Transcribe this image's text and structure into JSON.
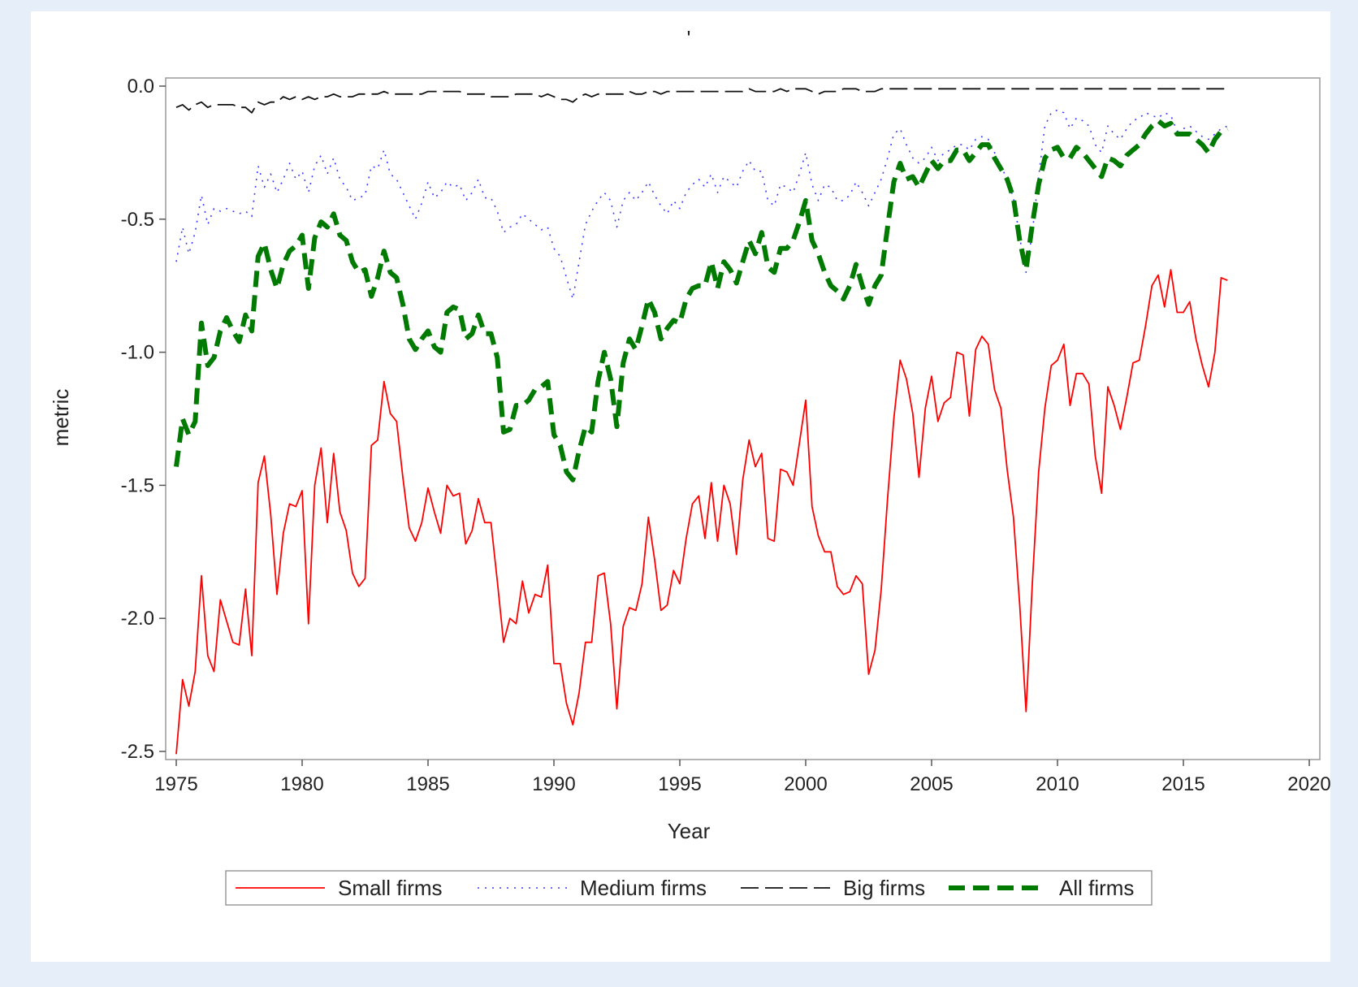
{
  "chart_data": {
    "type": "line",
    "title": "'",
    "xlabel": "Year",
    "ylabel": "metric",
    "xlim": [
      1975,
      2020
    ],
    "ylim": [
      -2.5,
      0.0
    ],
    "x_ticks": [
      "1975",
      "1980",
      "1985",
      "1990",
      "1995",
      "2000",
      "2005",
      "2010",
      "2015",
      "2020"
    ],
    "y_ticks": [
      "0.0",
      "-0.5",
      "-1.0",
      "-1.5",
      "-2.0",
      "-2.5"
    ],
    "grid": false,
    "legend_position": "bottom",
    "x": [
      1975.0,
      1975.25,
      1975.5,
      1975.75,
      1976.0,
      1976.25,
      1976.5,
      1976.75,
      1977.0,
      1977.25,
      1977.5,
      1977.75,
      1978.0,
      1978.25,
      1978.5,
      1978.75,
      1979.0,
      1979.25,
      1979.5,
      1979.75,
      1980.0,
      1980.25,
      1980.5,
      1980.75,
      1981.0,
      1981.25,
      1981.5,
      1981.75,
      1982.0,
      1982.25,
      1982.5,
      1982.75,
      1983.0,
      1983.25,
      1983.5,
      1983.75,
      1984.0,
      1984.25,
      1984.5,
      1984.75,
      1985.0,
      1985.25,
      1985.5,
      1985.75,
      1986.0,
      1986.25,
      1986.5,
      1986.75,
      1987.0,
      1987.25,
      1987.5,
      1987.75,
      1988.0,
      1988.25,
      1988.5,
      1988.75,
      1989.0,
      1989.25,
      1989.5,
      1989.75,
      1990.0,
      1990.25,
      1990.5,
      1990.75,
      1991.0,
      1991.25,
      1991.5,
      1991.75,
      1992.0,
      1992.25,
      1992.5,
      1992.75,
      1993.0,
      1993.25,
      1993.5,
      1993.75,
      1994.0,
      1994.25,
      1994.5,
      1994.75,
      1995.0,
      1995.25,
      1995.5,
      1995.75,
      1996.0,
      1996.25,
      1996.5,
      1996.75,
      1997.0,
      1997.25,
      1997.5,
      1997.75,
      1998.0,
      1998.25,
      1998.5,
      1998.75,
      1999.0,
      1999.25,
      1999.5,
      1999.75,
      2000.0,
      2000.25,
      2000.5,
      2000.75,
      2001.0,
      2001.25,
      2001.5,
      2001.75,
      2002.0,
      2002.25,
      2002.5,
      2002.75,
      2003.0,
      2003.25,
      2003.5,
      2003.75,
      2004.0,
      2004.25,
      2004.5,
      2004.75,
      2005.0,
      2005.25,
      2005.5,
      2005.75,
      2006.0,
      2006.25,
      2006.5,
      2006.75,
      2007.0,
      2007.25,
      2007.5,
      2007.75,
      2008.0,
      2008.25,
      2008.5,
      2008.75,
      2009.0,
      2009.25,
      2009.5,
      2009.75,
      2010.0,
      2010.25,
      2010.5,
      2010.75,
      2011.0,
      2011.25,
      2011.5,
      2011.75,
      2012.0,
      2012.25,
      2012.5,
      2012.75,
      2013.0,
      2013.25,
      2013.5,
      2013.75,
      2014.0,
      2014.25,
      2014.5,
      2014.75,
      2015.0,
      2015.25,
      2015.5,
      2015.75,
      2016.0,
      2016.25,
      2016.5,
      2016.75
    ],
    "series": [
      {
        "name": "Small firms",
        "color": "#ff0000",
        "style": "solid",
        "values": [
          -2.51,
          -2.23,
          -2.33,
          -2.2,
          -1.84,
          -2.14,
          -2.2,
          -1.93,
          -2.01,
          -2.09,
          -2.1,
          -1.89,
          -2.14,
          -1.49,
          -1.39,
          -1.61,
          -1.91,
          -1.68,
          -1.57,
          -1.58,
          -1.52,
          -2.02,
          -1.5,
          -1.36,
          -1.64,
          -1.38,
          -1.6,
          -1.67,
          -1.83,
          -1.88,
          -1.85,
          -1.35,
          -1.33,
          -1.11,
          -1.23,
          -1.26,
          -1.47,
          -1.66,
          -1.71,
          -1.64,
          -1.51,
          -1.6,
          -1.68,
          -1.5,
          -1.54,
          -1.53,
          -1.72,
          -1.67,
          -1.55,
          -1.64,
          -1.64,
          -1.86,
          -2.09,
          -2.0,
          -2.02,
          -1.86,
          -1.98,
          -1.91,
          -1.92,
          -1.8,
          -2.17,
          -2.17,
          -2.32,
          -2.4,
          -2.28,
          -2.09,
          -2.09,
          -1.84,
          -1.83,
          -2.02,
          -2.34,
          -2.03,
          -1.96,
          -1.97,
          -1.87,
          -1.62,
          -1.78,
          -1.97,
          -1.95,
          -1.82,
          -1.87,
          -1.7,
          -1.57,
          -1.54,
          -1.7,
          -1.49,
          -1.71,
          -1.5,
          -1.57,
          -1.76,
          -1.48,
          -1.33,
          -1.43,
          -1.38,
          -1.7,
          -1.71,
          -1.44,
          -1.45,
          -1.5,
          -1.34,
          -1.18,
          -1.58,
          -1.69,
          -1.75,
          -1.75,
          -1.88,
          -1.91,
          -1.9,
          -1.84,
          -1.87,
          -2.21,
          -2.12,
          -1.89,
          -1.55,
          -1.25,
          -1.03,
          -1.1,
          -1.23,
          -1.47,
          -1.21,
          -1.09,
          -1.26,
          -1.19,
          -1.17,
          -1.0,
          -1.01,
          -1.24,
          -0.99,
          -0.94,
          -0.97,
          -1.14,
          -1.21,
          -1.44,
          -1.62,
          -1.95,
          -2.35,
          -1.87,
          -1.45,
          -1.21,
          -1.05,
          -1.03,
          -0.97,
          -1.2,
          -1.08,
          -1.08,
          -1.12,
          -1.39,
          -1.53,
          -1.13,
          -1.2,
          -1.29,
          -1.17,
          -1.04,
          -1.03,
          -0.9,
          -0.75,
          -0.71,
          -0.83,
          -0.69,
          -0.85,
          -0.85,
          -0.81,
          -0.95,
          -1.05,
          -1.13,
          -1.0,
          -0.72,
          -0.73
        ]
      },
      {
        "name": "Medium firms",
        "color": "#3b3bff",
        "style": "dotted",
        "values": [
          -0.66,
          -0.53,
          -0.63,
          -0.55,
          -0.41,
          -0.52,
          -0.46,
          -0.47,
          -0.46,
          -0.47,
          -0.48,
          -0.47,
          -0.49,
          -0.3,
          -0.38,
          -0.33,
          -0.4,
          -0.35,
          -0.29,
          -0.35,
          -0.32,
          -0.4,
          -0.3,
          -0.26,
          -0.33,
          -0.27,
          -0.35,
          -0.38,
          -0.43,
          -0.42,
          -0.41,
          -0.3,
          -0.31,
          -0.24,
          -0.33,
          -0.35,
          -0.4,
          -0.45,
          -0.5,
          -0.44,
          -0.36,
          -0.42,
          -0.4,
          -0.36,
          -0.38,
          -0.37,
          -0.43,
          -0.4,
          -0.35,
          -0.42,
          -0.42,
          -0.47,
          -0.55,
          -0.53,
          -0.52,
          -0.48,
          -0.5,
          -0.52,
          -0.54,
          -0.53,
          -0.61,
          -0.64,
          -0.72,
          -0.8,
          -0.66,
          -0.52,
          -0.47,
          -0.43,
          -0.4,
          -0.43,
          -0.53,
          -0.43,
          -0.4,
          -0.43,
          -0.4,
          -0.36,
          -0.41,
          -0.45,
          -0.48,
          -0.43,
          -0.46,
          -0.4,
          -0.37,
          -0.35,
          -0.38,
          -0.33,
          -0.4,
          -0.34,
          -0.36,
          -0.38,
          -0.32,
          -0.28,
          -0.32,
          -0.32,
          -0.43,
          -0.45,
          -0.37,
          -0.38,
          -0.4,
          -0.33,
          -0.25,
          -0.37,
          -0.43,
          -0.37,
          -0.38,
          -0.43,
          -0.43,
          -0.41,
          -0.36,
          -0.4,
          -0.45,
          -0.4,
          -0.35,
          -0.27,
          -0.18,
          -0.16,
          -0.22,
          -0.27,
          -0.29,
          -0.27,
          -0.23,
          -0.28,
          -0.25,
          -0.24,
          -0.22,
          -0.22,
          -0.24,
          -0.2,
          -0.19,
          -0.2,
          -0.25,
          -0.3,
          -0.35,
          -0.42,
          -0.57,
          -0.7,
          -0.55,
          -0.34,
          -0.15,
          -0.1,
          -0.09,
          -0.1,
          -0.16,
          -0.12,
          -0.13,
          -0.15,
          -0.22,
          -0.25,
          -0.15,
          -0.18,
          -0.2,
          -0.16,
          -0.13,
          -0.12,
          -0.1,
          -0.11,
          -0.12,
          -0.1,
          -0.11,
          -0.17,
          -0.16,
          -0.15,
          -0.17,
          -0.19,
          -0.2,
          -0.18,
          -0.16,
          -0.15
        ]
      },
      {
        "name": "Big firms",
        "color": "#111111",
        "style": "long-dash",
        "values": [
          -0.08,
          -0.07,
          -0.09,
          -0.07,
          -0.06,
          -0.08,
          -0.07,
          -0.07,
          -0.07,
          -0.07,
          -0.08,
          -0.08,
          -0.1,
          -0.06,
          -0.07,
          -0.06,
          -0.06,
          -0.04,
          -0.05,
          -0.04,
          -0.05,
          -0.04,
          -0.05,
          -0.04,
          -0.04,
          -0.03,
          -0.04,
          -0.04,
          -0.04,
          -0.03,
          -0.03,
          -0.03,
          -0.03,
          -0.02,
          -0.03,
          -0.03,
          -0.03,
          -0.03,
          -0.03,
          -0.03,
          -0.02,
          -0.02,
          -0.02,
          -0.02,
          -0.02,
          -0.02,
          -0.03,
          -0.03,
          -0.03,
          -0.03,
          -0.04,
          -0.04,
          -0.04,
          -0.04,
          -0.03,
          -0.03,
          -0.03,
          -0.03,
          -0.04,
          -0.03,
          -0.04,
          -0.05,
          -0.05,
          -0.06,
          -0.04,
          -0.03,
          -0.04,
          -0.03,
          -0.03,
          -0.03,
          -0.03,
          -0.03,
          -0.02,
          -0.03,
          -0.03,
          -0.02,
          -0.02,
          -0.03,
          -0.02,
          -0.02,
          -0.02,
          -0.02,
          -0.02,
          -0.02,
          -0.02,
          -0.02,
          -0.02,
          -0.02,
          -0.02,
          -0.02,
          -0.02,
          -0.01,
          -0.02,
          -0.02,
          -0.02,
          -0.02,
          -0.01,
          -0.02,
          -0.01,
          -0.01,
          -0.01,
          -0.02,
          -0.03,
          -0.02,
          -0.02,
          -0.02,
          -0.01,
          -0.01,
          -0.01,
          -0.02,
          -0.02,
          -0.02,
          -0.01,
          -0.01,
          -0.01,
          -0.01,
          -0.01,
          -0.01,
          -0.01,
          -0.01,
          -0.01,
          -0.01,
          -0.01,
          -0.01,
          -0.01,
          -0.01,
          -0.01,
          -0.01,
          -0.01,
          -0.01,
          -0.01,
          -0.01,
          -0.01,
          -0.01,
          -0.01,
          -0.01,
          -0.01,
          -0.01,
          -0.01,
          -0.01,
          -0.01,
          -0.01,
          -0.01,
          -0.01,
          -0.01,
          -0.01,
          -0.01,
          -0.01,
          -0.01,
          -0.01,
          -0.01,
          -0.01,
          -0.01,
          -0.01,
          -0.01,
          -0.01,
          -0.01,
          -0.01,
          -0.01,
          -0.01,
          -0.01,
          -0.01,
          -0.01,
          -0.01,
          -0.01,
          -0.01,
          -0.01,
          -0.01
        ]
      },
      {
        "name": "All firms",
        "color": "#007a00",
        "style": "thick-dash",
        "values": [
          -1.43,
          -1.25,
          -1.31,
          -1.26,
          -0.89,
          -1.05,
          -1.02,
          -0.92,
          -0.87,
          -0.92,
          -0.96,
          -0.86,
          -0.92,
          -0.64,
          -0.59,
          -0.69,
          -0.76,
          -0.67,
          -0.62,
          -0.6,
          -0.56,
          -0.76,
          -0.57,
          -0.51,
          -0.53,
          -0.48,
          -0.56,
          -0.58,
          -0.66,
          -0.7,
          -0.69,
          -0.79,
          -0.72,
          -0.62,
          -0.7,
          -0.72,
          -0.82,
          -0.95,
          -0.99,
          -0.95,
          -0.92,
          -0.98,
          -1.0,
          -0.85,
          -0.83,
          -0.84,
          -0.95,
          -0.93,
          -0.86,
          -0.93,
          -0.93,
          -1.02,
          -1.3,
          -1.29,
          -1.2,
          -1.2,
          -1.18,
          -1.14,
          -1.13,
          -1.11,
          -1.31,
          -1.35,
          -1.45,
          -1.48,
          -1.37,
          -1.28,
          -1.3,
          -1.11,
          -1.0,
          -1.1,
          -1.28,
          -1.04,
          -0.95,
          -0.99,
          -0.9,
          -0.8,
          -0.85,
          -0.95,
          -0.91,
          -0.88,
          -0.89,
          -0.8,
          -0.76,
          -0.75,
          -0.75,
          -0.66,
          -0.76,
          -0.66,
          -0.69,
          -0.74,
          -0.66,
          -0.58,
          -0.63,
          -0.55,
          -0.68,
          -0.7,
          -0.61,
          -0.61,
          -0.58,
          -0.51,
          -0.43,
          -0.58,
          -0.63,
          -0.7,
          -0.75,
          -0.77,
          -0.8,
          -0.75,
          -0.67,
          -0.75,
          -0.82,
          -0.75,
          -0.71,
          -0.53,
          -0.36,
          -0.29,
          -0.35,
          -0.34,
          -0.38,
          -0.33,
          -0.28,
          -0.31,
          -0.28,
          -0.28,
          -0.24,
          -0.24,
          -0.28,
          -0.25,
          -0.22,
          -0.22,
          -0.27,
          -0.31,
          -0.35,
          -0.42,
          -0.58,
          -0.69,
          -0.52,
          -0.37,
          -0.27,
          -0.24,
          -0.23,
          -0.27,
          -0.27,
          -0.23,
          -0.25,
          -0.28,
          -0.31,
          -0.34,
          -0.27,
          -0.28,
          -0.3,
          -0.26,
          -0.24,
          -0.22,
          -0.18,
          -0.15,
          -0.13,
          -0.15,
          -0.14,
          -0.18,
          -0.18,
          -0.18,
          -0.2,
          -0.22,
          -0.25,
          -0.2,
          -0.17,
          -0.16
        ]
      }
    ]
  }
}
